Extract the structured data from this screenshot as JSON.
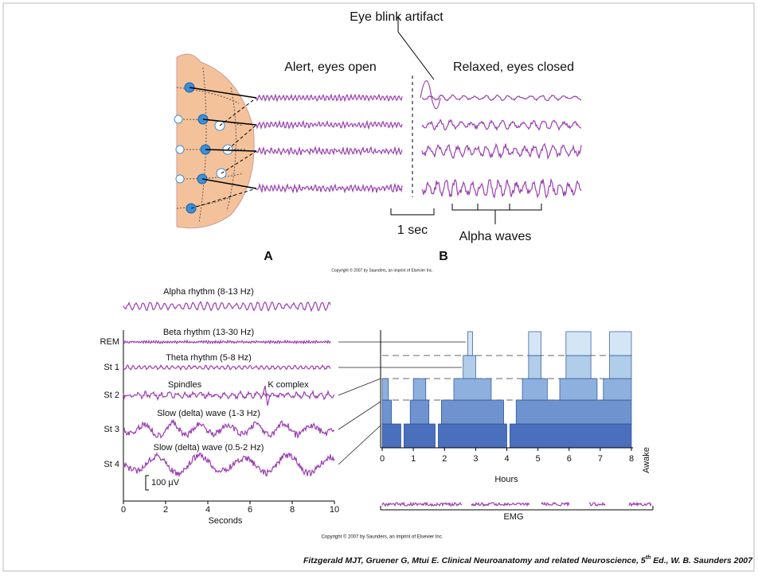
{
  "top_figure": {
    "artifact_label": "Eye blink artifact",
    "alert_label": "Alert, eyes open",
    "relaxed_label": "Relaxed, eyes closed",
    "time_scale": "1 sec",
    "alpha_label": "Alpha waves",
    "panel_a": "A",
    "panel_b": "B",
    "copyright": "Copyright © 2007 by Saunders, an imprint of Elsevier Inc."
  },
  "sleep_figure": {
    "alpha": "Alpha rhythm (8-13 Hz)",
    "beta": "Beta rhythm (13-30 Hz)",
    "theta": "Theta rhythm (5-8 Hz)",
    "spindles": "Spindles",
    "k_complex": "K complex",
    "delta_1": "Slow (delta) wave (1-3 Hz)",
    "delta_2": "Slow (delta) wave (0.5-2 Hz)",
    "stages": [
      "REM",
      "St 1",
      "St 2",
      "St 3",
      "St 4"
    ],
    "amplitude_scale": "100 µV",
    "seconds_ticks": [
      0,
      2,
      4,
      6,
      8,
      10
    ],
    "seconds_label": "Seconds",
    "hours_ticks": [
      0,
      1,
      2,
      3,
      4,
      5,
      6,
      7,
      8
    ],
    "hours_label": "Hours",
    "awake_label": "Awake",
    "emg_label": "EMG",
    "copyright": "Copyright © 2007 by Saunders, an imprint of Elsevier Inc."
  },
  "citation": {
    "before": "Fitzgerald MJT, Gruener G, Mtui E. Clinical Neuroanatomy and related Neuroscience, 5",
    "superscript": "th",
    "after": " Ed., W. B. Saunders 2007"
  }
}
